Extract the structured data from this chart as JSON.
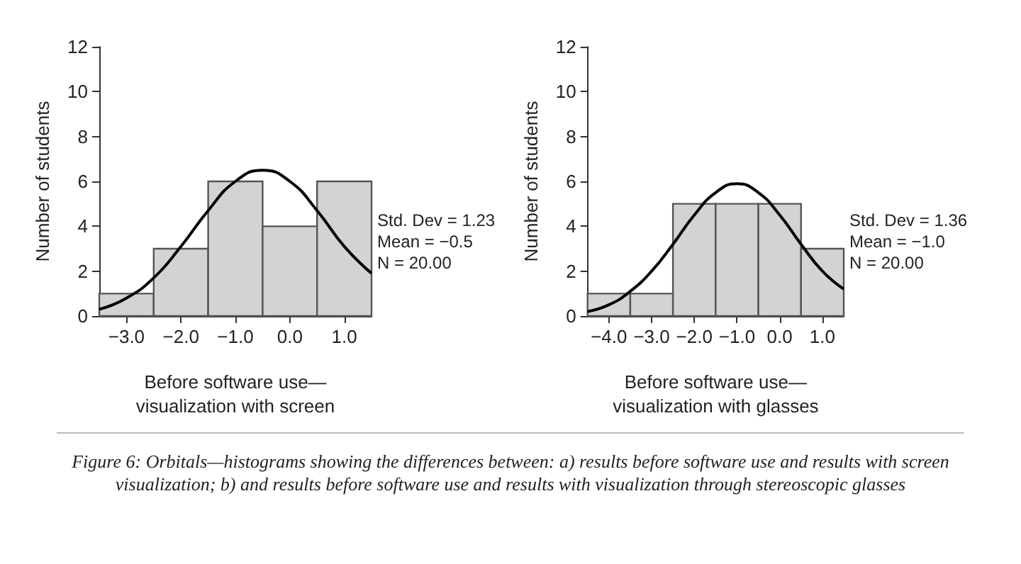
{
  "chart_data": [
    {
      "type": "histogram",
      "xlabel": "Before software use—\nvisualization with screen",
      "ylabel": "Number of students",
      "bins": [
        -3.5,
        -2.5,
        -1.5,
        -0.5,
        0.5,
        1.5
      ],
      "values": [
        1,
        3,
        6,
        4,
        6
      ],
      "color": "#d3d3d3",
      "series": [
        {
          "type": "line",
          "color": "#000000",
          "x": [
            -3.5,
            -3,
            -2.5,
            -2,
            -1.5,
            -1,
            -0.5,
            0,
            0.5,
            1,
            1.5
          ],
          "values": [
            0.3,
            0.8,
            1.7,
            3.1,
            4.7,
            6.0,
            6.5,
            6.0,
            4.7,
            3.1,
            1.9
          ]
        }
      ],
      "xlim": [
        -3.5,
        1.5
      ],
      "xticks": [
        {
          "value": -3,
          "label": "−3.0"
        },
        {
          "value": -2,
          "label": "−2.0"
        },
        {
          "value": -1,
          "label": "−1.0"
        },
        {
          "value": 0,
          "label": "0.0"
        },
        {
          "value": 1,
          "label": "1.0"
        }
      ],
      "ylim": [
        0,
        12
      ],
      "yticks": [
        0,
        2,
        4,
        6,
        8,
        10,
        12
      ],
      "grid": false,
      "annotations": [
        "Std. Dev = 1.23",
        "Mean = −0.5",
        "N = 20.00",
        "Figure 6:  Orbitals—histograms showing the differences between: a) results before software use and results with screen visualization; b) and results before software use and results with visualization through stereoscopic glasses"
      ]
    },
    {
      "type": "histogram",
      "xlabel": "Before software use—\nvisualization with glasses",
      "ylabel": "Number of students",
      "bins": [
        -4.5,
        -3.5,
        -2.5,
        -1.5,
        -0.5,
        0.5,
        1.5
      ],
      "values": [
        1,
        1,
        5,
        5,
        5,
        3
      ],
      "color": "#d3d3d3",
      "series": [
        {
          "type": "line",
          "color": "#000000",
          "x": [
            -4.5,
            -4,
            -3.5,
            -3,
            -2.5,
            -2,
            -1.5,
            -1,
            -0.5,
            0,
            0.5,
            1,
            1.5
          ],
          "values": [
            0.2,
            0.5,
            1.1,
            2.0,
            3.2,
            4.5,
            5.5,
            5.9,
            5.5,
            4.5,
            3.2,
            2.0,
            1.2
          ]
        }
      ],
      "xlim": [
        -4.5,
        1.5
      ],
      "xticks": [
        {
          "value": -4,
          "label": "−4.0"
        },
        {
          "value": -3,
          "label": "−3.0"
        },
        {
          "value": -2,
          "label": "−2.0"
        },
        {
          "value": -1,
          "label": "−1.0"
        },
        {
          "value": 0,
          "label": "0.0"
        },
        {
          "value": 1,
          "label": "1.0"
        }
      ],
      "ylim": [
        0,
        12
      ],
      "yticks": [
        0,
        2,
        4,
        6,
        8,
        10,
        12
      ],
      "grid": false,
      "annotations": [
        "Std. Dev = 1.36",
        "Mean = −1.0",
        "N = 20.00"
      ]
    }
  ]
}
